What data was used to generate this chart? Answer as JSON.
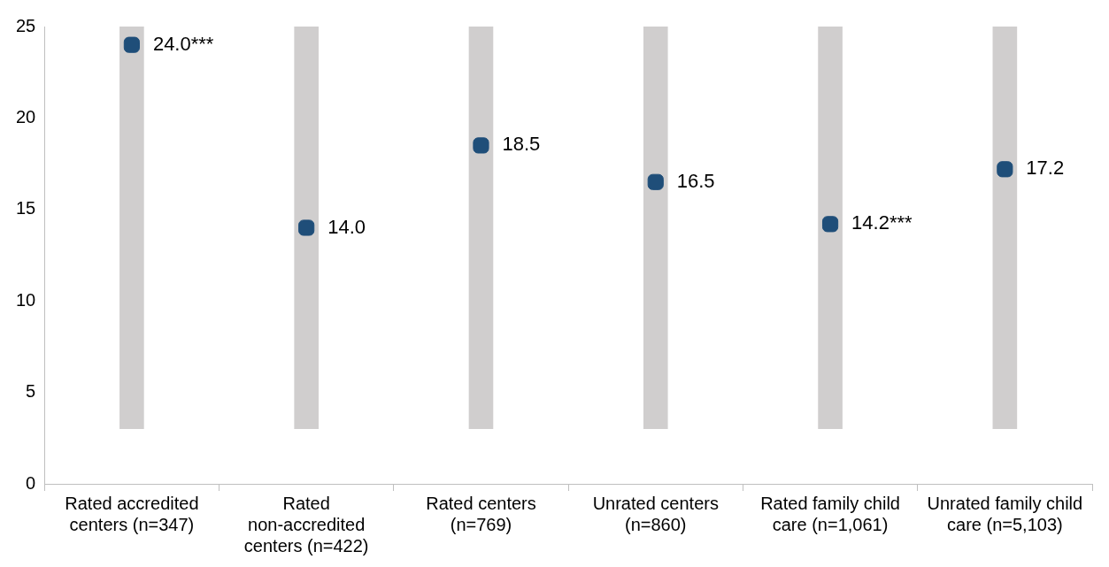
{
  "chart_data": {
    "type": "bar",
    "categories": [
      "Rated accredited centers (n=347)",
      "Rated non-accredited centers (n=422)",
      "Rated centers (n=769)",
      "Unrated centers (n=860)",
      "Rated family child care (n=1,061)",
      "Unrated family child care (n=5,103)"
    ],
    "series": [
      {
        "color": "#d0cece",
        "base": [
          3,
          3,
          3,
          3,
          3,
          3
        ],
        "values": [
          22,
          22,
          22,
          22,
          22,
          22
        ]
      },
      {
        "type": "scatter",
        "color": "#1f4e79",
        "values": [
          24.0,
          14.0,
          18.5,
          16.5,
          14.2,
          17.2
        ],
        "value_labels": [
          "24.0***",
          "14.0",
          "18.5",
          "16.5",
          "14.2***",
          "17.2"
        ]
      }
    ],
    "ylim": [
      0,
      25
    ],
    "yticks": [
      0,
      5,
      10,
      15,
      20,
      25
    ],
    "grid": false,
    "legend": false,
    "marker": "square"
  }
}
